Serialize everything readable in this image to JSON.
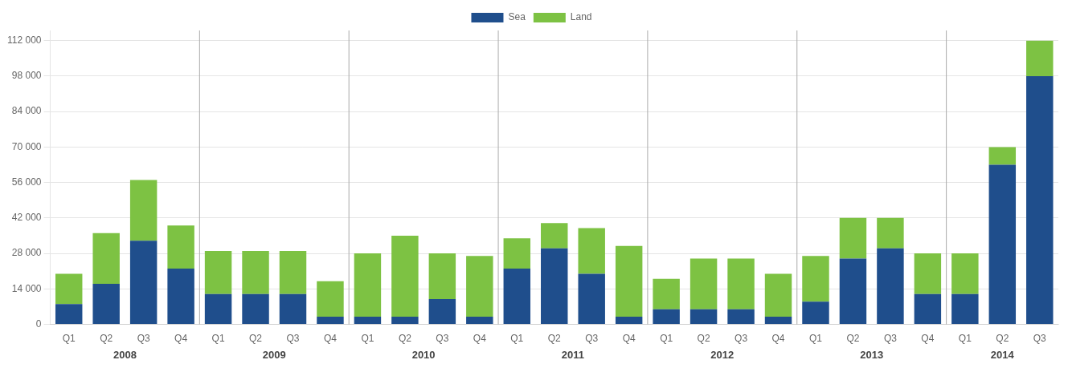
{
  "chart_data": {
    "type": "bar",
    "stacked": true,
    "categories": [
      "Q1",
      "Q2",
      "Q3",
      "Q4",
      "Q1",
      "Q2",
      "Q3",
      "Q4",
      "Q1",
      "Q2",
      "Q3",
      "Q4",
      "Q1",
      "Q2",
      "Q3",
      "Q4",
      "Q1",
      "Q2",
      "Q3",
      "Q4",
      "Q1",
      "Q2",
      "Q3",
      "Q4",
      "Q1",
      "Q2",
      "Q3"
    ],
    "series": [
      {
        "name": "Sea",
        "color": "#1f4e8c",
        "values": [
          8000,
          16000,
          33000,
          22000,
          12000,
          12000,
          12000,
          3000,
          3000,
          3000,
          10000,
          3000,
          22000,
          30000,
          20000,
          3000,
          6000,
          6000,
          6000,
          3000,
          9000,
          26000,
          30000,
          12000,
          12000,
          63000,
          98000
        ]
      },
      {
        "name": "Land",
        "color": "#7dc243",
        "values": [
          12000,
          20000,
          24000,
          17000,
          17000,
          17000,
          17000,
          14000,
          25000,
          32000,
          18000,
          24000,
          12000,
          10000,
          18000,
          28000,
          12000,
          20000,
          20000,
          17000,
          18000,
          16000,
          12000,
          16000,
          16000,
          7000,
          14000
        ]
      }
    ],
    "ylim": [
      0,
      116000
    ],
    "yticks": [
      0,
      {
        "value": 14000,
        "label": "14 000"
      },
      {
        "value": 28000,
        "label": "28 000"
      },
      {
        "value": 42000,
        "label": "42 000"
      },
      {
        "value": 56000,
        "label": "56 000"
      },
      {
        "value": 70000,
        "label": "70 000"
      },
      {
        "value": 84000,
        "label": "84 000"
      },
      {
        "value": 98000,
        "label": "98 000"
      },
      {
        "value": 112000,
        "label": "112 000"
      }
    ],
    "grid": true,
    "legend": "top",
    "annotations": [
      {
        "text": "2008",
        "x": [
          0,
          3
        ]
      },
      {
        "text": "2009",
        "x": [
          4,
          7
        ]
      },
      {
        "text": "2010",
        "x": [
          8,
          11
        ]
      },
      {
        "text": "2011",
        "x": [
          12,
          15
        ]
      },
      {
        "text": "2012",
        "x": [
          16,
          19
        ]
      },
      {
        "text": "2013",
        "x": [
          20,
          23
        ]
      },
      {
        "text": "2014",
        "x": [
          24,
          26
        ]
      }
    ]
  }
}
